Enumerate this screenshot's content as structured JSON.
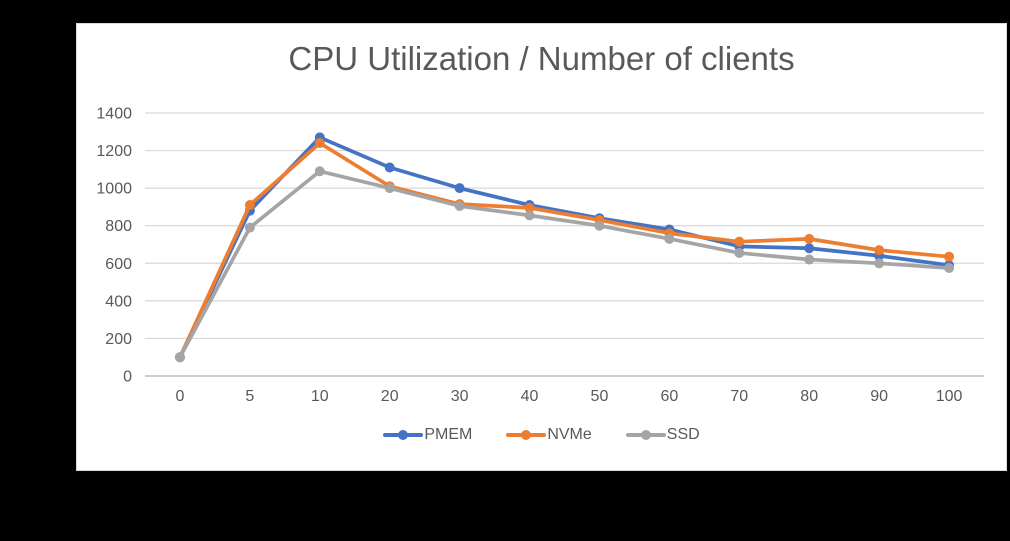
{
  "page": {
    "background": "#000000",
    "panel_background": "#ffffff",
    "panel_border": "#d9d9d9"
  },
  "chart_data": {
    "type": "line",
    "title": "CPU Utilization / Number of clients",
    "title_color": "#595959",
    "xlabel": "",
    "ylabel": "",
    "categories": [
      "0",
      "5",
      "10",
      "20",
      "30",
      "40",
      "50",
      "60",
      "70",
      "80",
      "90",
      "100"
    ],
    "ylim": [
      0,
      1400
    ],
    "y_ticks": [
      0,
      200,
      400,
      600,
      800,
      1000,
      1200,
      1400
    ],
    "grid": true,
    "gridline_color": "#d9d9d9",
    "axis_line_color": "#bfbfbf",
    "tick_label_color": "#595959",
    "legend_position": "bottom",
    "marker": "circle",
    "series": [
      {
        "name": "PMEM",
        "color": "#4472C4",
        "values": [
          100,
          880,
          1270,
          1110,
          1000,
          910,
          840,
          780,
          690,
          680,
          640,
          590
        ]
      },
      {
        "name": "NVMe",
        "color": "#ED7D31",
        "values": [
          100,
          910,
          1240,
          1010,
          915,
          895,
          830,
          760,
          715,
          730,
          670,
          635
        ]
      },
      {
        "name": "SSD",
        "color": "#A5A5A5",
        "values": [
          100,
          790,
          1090,
          1000,
          905,
          855,
          800,
          730,
          655,
          620,
          600,
          575
        ]
      }
    ]
  }
}
